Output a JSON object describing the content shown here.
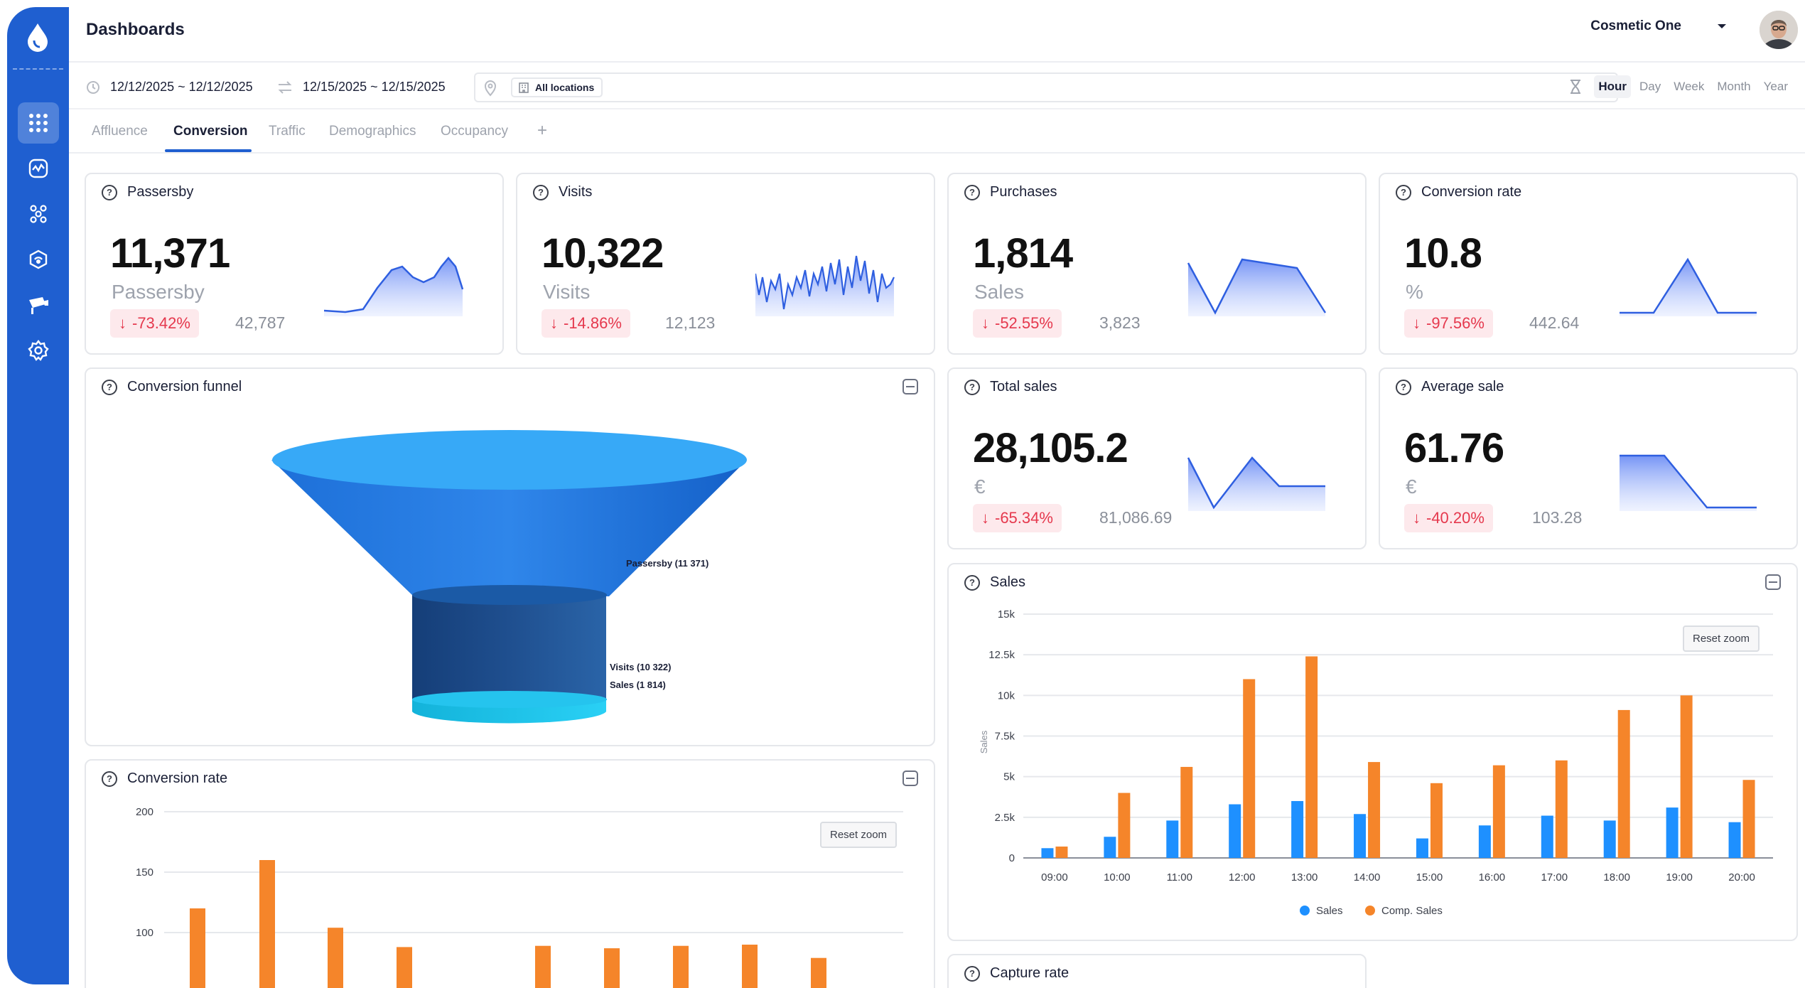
{
  "header": {
    "title": "Dashboards",
    "organization": "Cosmetic One"
  },
  "filters": {
    "date_range_primary": "12/12/2025 ~ 12/12/2025",
    "date_range_compare": "12/15/2025 ~ 12/15/2025",
    "location": "All locations",
    "periods": [
      "Hour",
      "Day",
      "Week",
      "Month",
      "Year"
    ],
    "active_period": "Hour"
  },
  "tabs": [
    {
      "label": "Affluence",
      "active": false
    },
    {
      "label": "Conversion",
      "active": true
    },
    {
      "label": "Traffic",
      "active": false
    },
    {
      "label": "Demographics",
      "active": false
    },
    {
      "label": "Occupancy",
      "active": false
    }
  ],
  "add_tab_label": "+",
  "colors": {
    "primary": "#1f5fd0",
    "negative": "#e5384d",
    "sales": "#1e90ff",
    "comp_sales": "#f5852a"
  },
  "sidebar_icons": [
    "apps-grid-icon",
    "analytics-icon",
    "network-icon",
    "sensor-icon",
    "camera-icon",
    "settings-icon"
  ],
  "kpis": {
    "passersby": {
      "title": "Passersby",
      "value": "11,371",
      "unit": "Passersby",
      "delta": "-73.42%",
      "reference": "42,787"
    },
    "visits": {
      "title": "Visits",
      "value": "10,322",
      "unit": "Visits",
      "delta": "-14.86%",
      "reference": "12,123"
    },
    "purchases": {
      "title": "Purchases",
      "value": "1,814",
      "unit": "Sales",
      "delta": "-52.55%",
      "reference": "3,823"
    },
    "conversion_rate": {
      "title": "Conversion rate",
      "value": "10.8",
      "unit": "%",
      "delta": "-97.56%",
      "reference": "442.64"
    },
    "total_sales": {
      "title": "Total sales",
      "value": "28,105.2",
      "unit": "€",
      "delta": "-65.34%",
      "reference": "81,086.69"
    },
    "average_sale": {
      "title": "Average sale",
      "value": "61.76",
      "unit": "€",
      "delta": "-40.20%",
      "reference": "103.28"
    }
  },
  "funnel": {
    "title": "Conversion funnel",
    "stages": [
      {
        "label": "Passersby (11 371)"
      },
      {
        "label": "Visits (10 322)"
      },
      {
        "label": "Sales (1 814)"
      }
    ]
  },
  "conversion_rate_chart": {
    "title": "Conversion rate",
    "reset_label": "Reset zoom",
    "y_ticks": [
      "200",
      "150",
      "100"
    ]
  },
  "sales_chart": {
    "title": "Sales",
    "reset_label": "Reset zoom",
    "ylabel": "Sales",
    "y_ticks": [
      "15k",
      "12.5k",
      "10k",
      "7.5k",
      "5k",
      "2.5k",
      "0"
    ],
    "legend": [
      "Sales",
      "Comp. Sales"
    ]
  },
  "capture_rate": {
    "title": "Capture rate"
  },
  "chart_data": [
    {
      "type": "bar",
      "title": "Sales",
      "ylabel": "Sales",
      "ylim": [
        0,
        15000
      ],
      "categories": [
        "09:00",
        "10:00",
        "11:00",
        "12:00",
        "13:00",
        "14:00",
        "15:00",
        "16:00",
        "17:00",
        "18:00",
        "19:00",
        "20:00"
      ],
      "series": [
        {
          "name": "Sales",
          "values": [
            600,
            1300,
            2300,
            3300,
            3500,
            2700,
            1200,
            2000,
            2600,
            2300,
            3100,
            2200
          ]
        },
        {
          "name": "Comp. Sales",
          "values": [
            700,
            4000,
            5600,
            11000,
            12400,
            5900,
            4600,
            5700,
            6000,
            9100,
            10000,
            4800
          ]
        }
      ],
      "legend": "bottom"
    },
    {
      "type": "bar",
      "title": "Conversion rate",
      "ylim": [
        75,
        200
      ],
      "series": [
        {
          "values": [
            120,
            160,
            104,
            88,
            89,
            87,
            89,
            90,
            79
          ]
        }
      ]
    }
  ]
}
